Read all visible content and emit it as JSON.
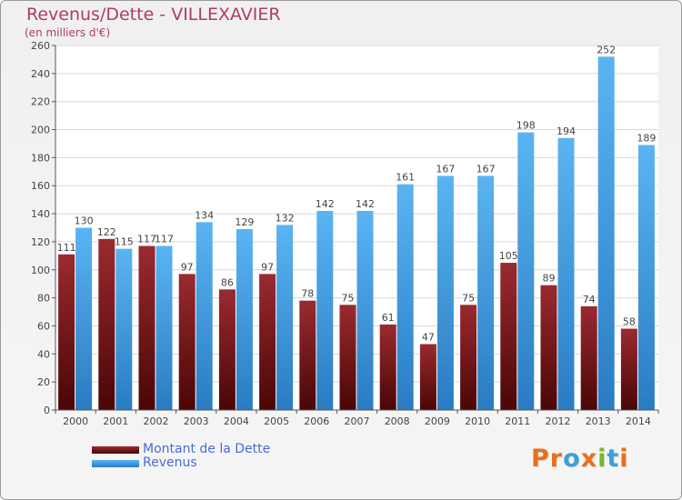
{
  "chart_data": {
    "type": "bar",
    "title": "Revenus/Dette - VILLEXAVIER",
    "subtitle": "(en milliers d'€)",
    "categories": [
      "2000",
      "2001",
      "2002",
      "2003",
      "2004",
      "2005",
      "2006",
      "2007",
      "2008",
      "2009",
      "2010",
      "2011",
      "2012",
      "2013",
      "2014"
    ],
    "series": [
      {
        "name": "Montant de la Dette",
        "values": [
          111,
          122,
          117,
          97,
          86,
          97,
          78,
          75,
          61,
          47,
          75,
          105,
          89,
          74,
          58
        ],
        "color": "#7a1a1e"
      },
      {
        "name": "Revenus",
        "values": [
          130,
          115,
          117,
          134,
          129,
          132,
          142,
          142,
          161,
          167,
          167,
          198,
          194,
          252,
          189
        ],
        "color": "#4aa3e6"
      }
    ],
    "ylim": [
      0,
      260
    ],
    "yticks": [
      0,
      20,
      40,
      60,
      80,
      100,
      120,
      140,
      160,
      180,
      200,
      220,
      240,
      260
    ],
    "grid": true,
    "legend_position": "bottom-left"
  },
  "logo": {
    "text": "Proxiti",
    "letter_colors": [
      "#e8701a",
      "#e8701a",
      "#3aa0d8",
      "#e8701a",
      "#7ab82a",
      "#3aa0d8",
      "#e8701a"
    ]
  }
}
